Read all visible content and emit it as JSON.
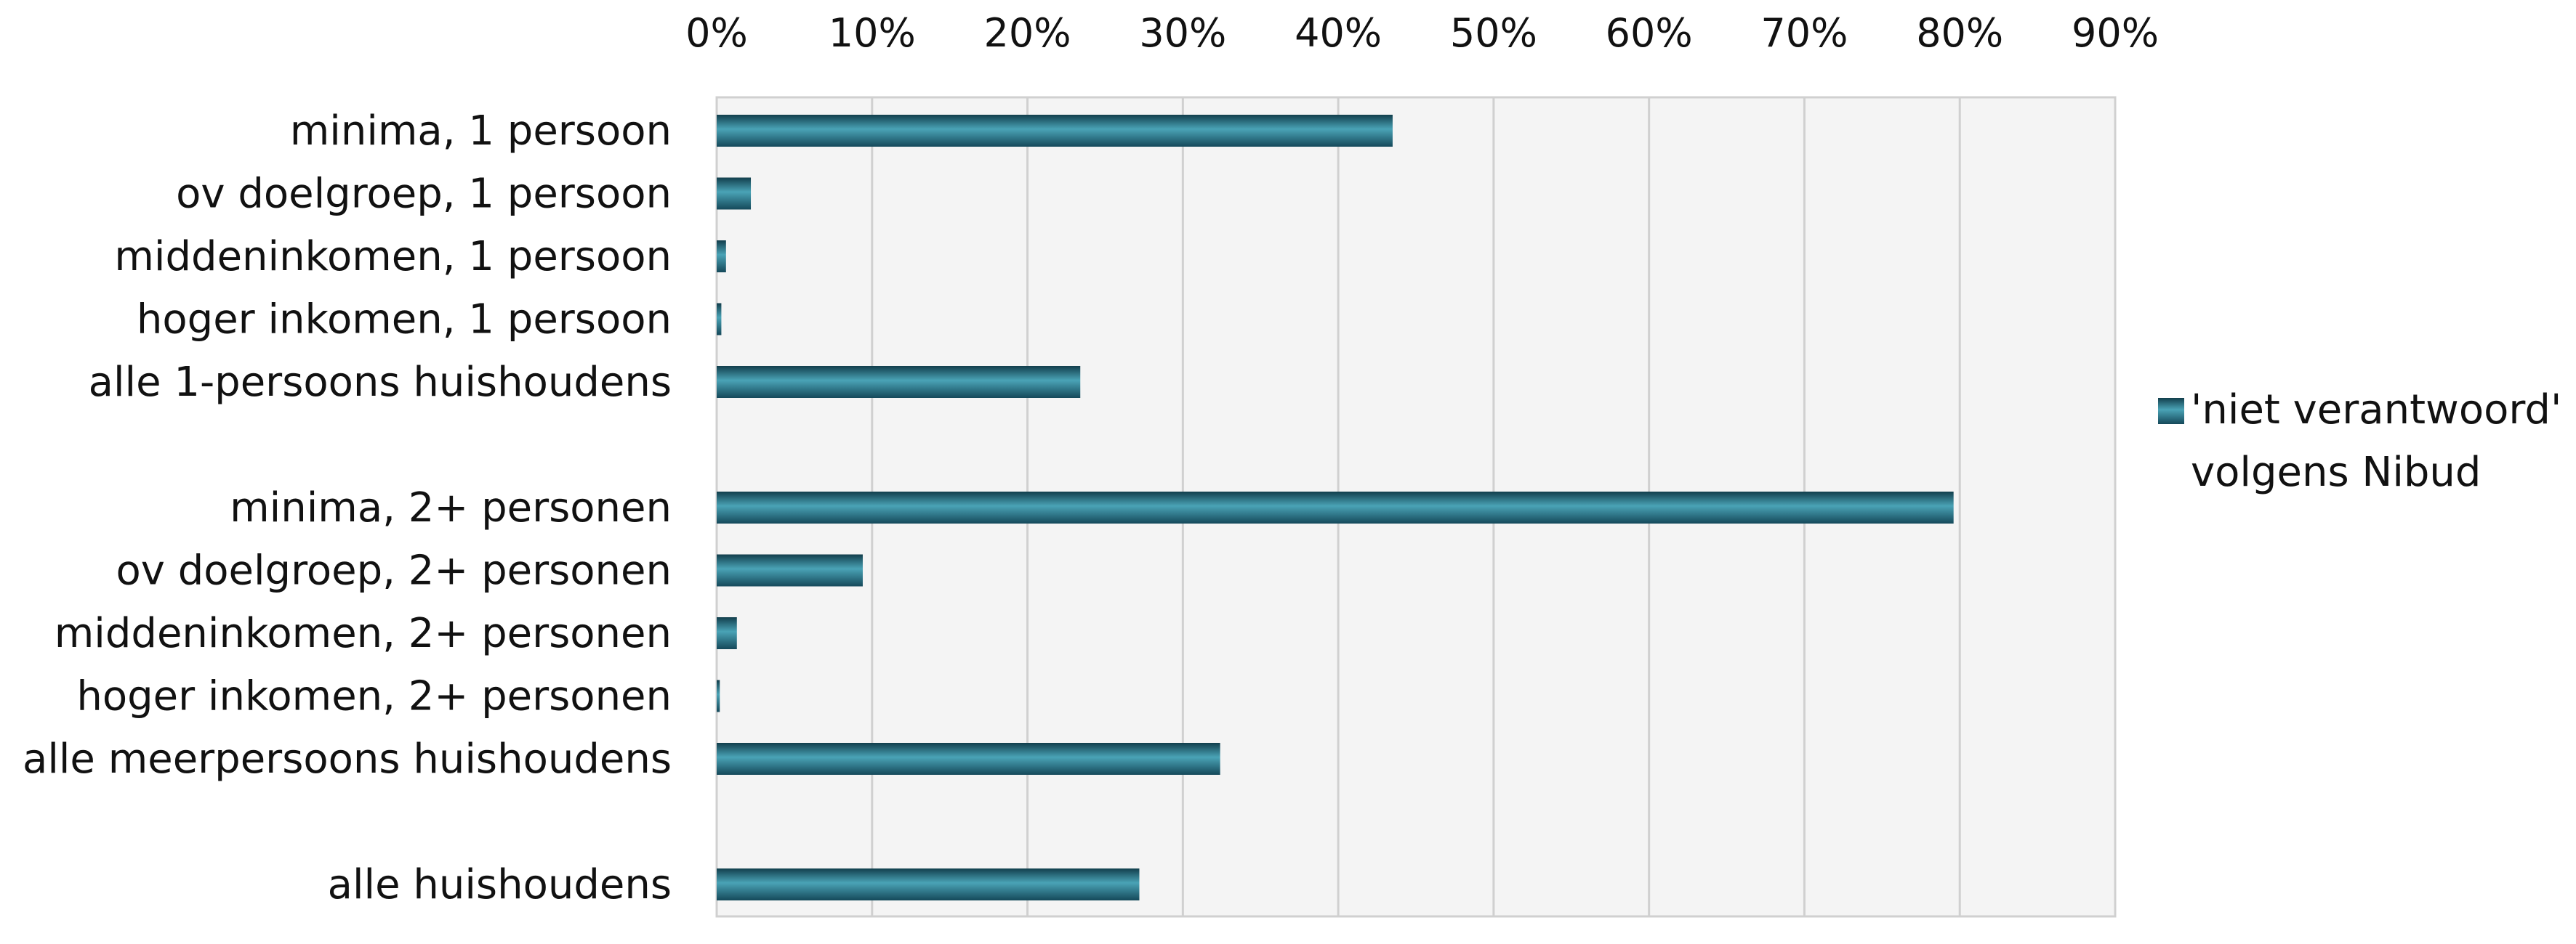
{
  "chart_data": {
    "type": "bar",
    "orientation": "horizontal",
    "categories": [
      "minima, 1 persoon",
      "ov doelgroep, 1 persoon",
      "middeninkomen, 1 persoon",
      "hoger inkomen, 1 persoon",
      "alle 1-persoons huishoudens",
      "",
      "minima, 2+ personen",
      "ov doelgroep, 2+ personen",
      "middeninkomen, 2+ personen",
      "hoger inkomen, 2+ personen",
      "alle meerpersoons huishoudens",
      "",
      "alle huishoudens"
    ],
    "series": [
      {
        "name": "'niet verantwoord' volgens Nibud",
        "legend_lines": [
          "'niet verantwoord'",
          "volgens Nibud"
        ],
        "color": "#2a7285",
        "values": [
          43.5,
          2.2,
          0.6,
          0.3,
          23.4,
          null,
          79.6,
          9.4,
          1.3,
          0.2,
          32.4,
          null,
          27.2
        ]
      }
    ],
    "xlim": [
      0,
      90
    ],
    "xticks": [
      0,
      10,
      20,
      30,
      40,
      50,
      60,
      70,
      80,
      90
    ],
    "tick_suffix": "%",
    "x_axis_position": "top",
    "grid": true,
    "legend_position": "right",
    "plot_background": "#f4f4f4",
    "gridline_color": "#d0d0d0",
    "title": "",
    "xlabel": "",
    "ylabel": ""
  }
}
